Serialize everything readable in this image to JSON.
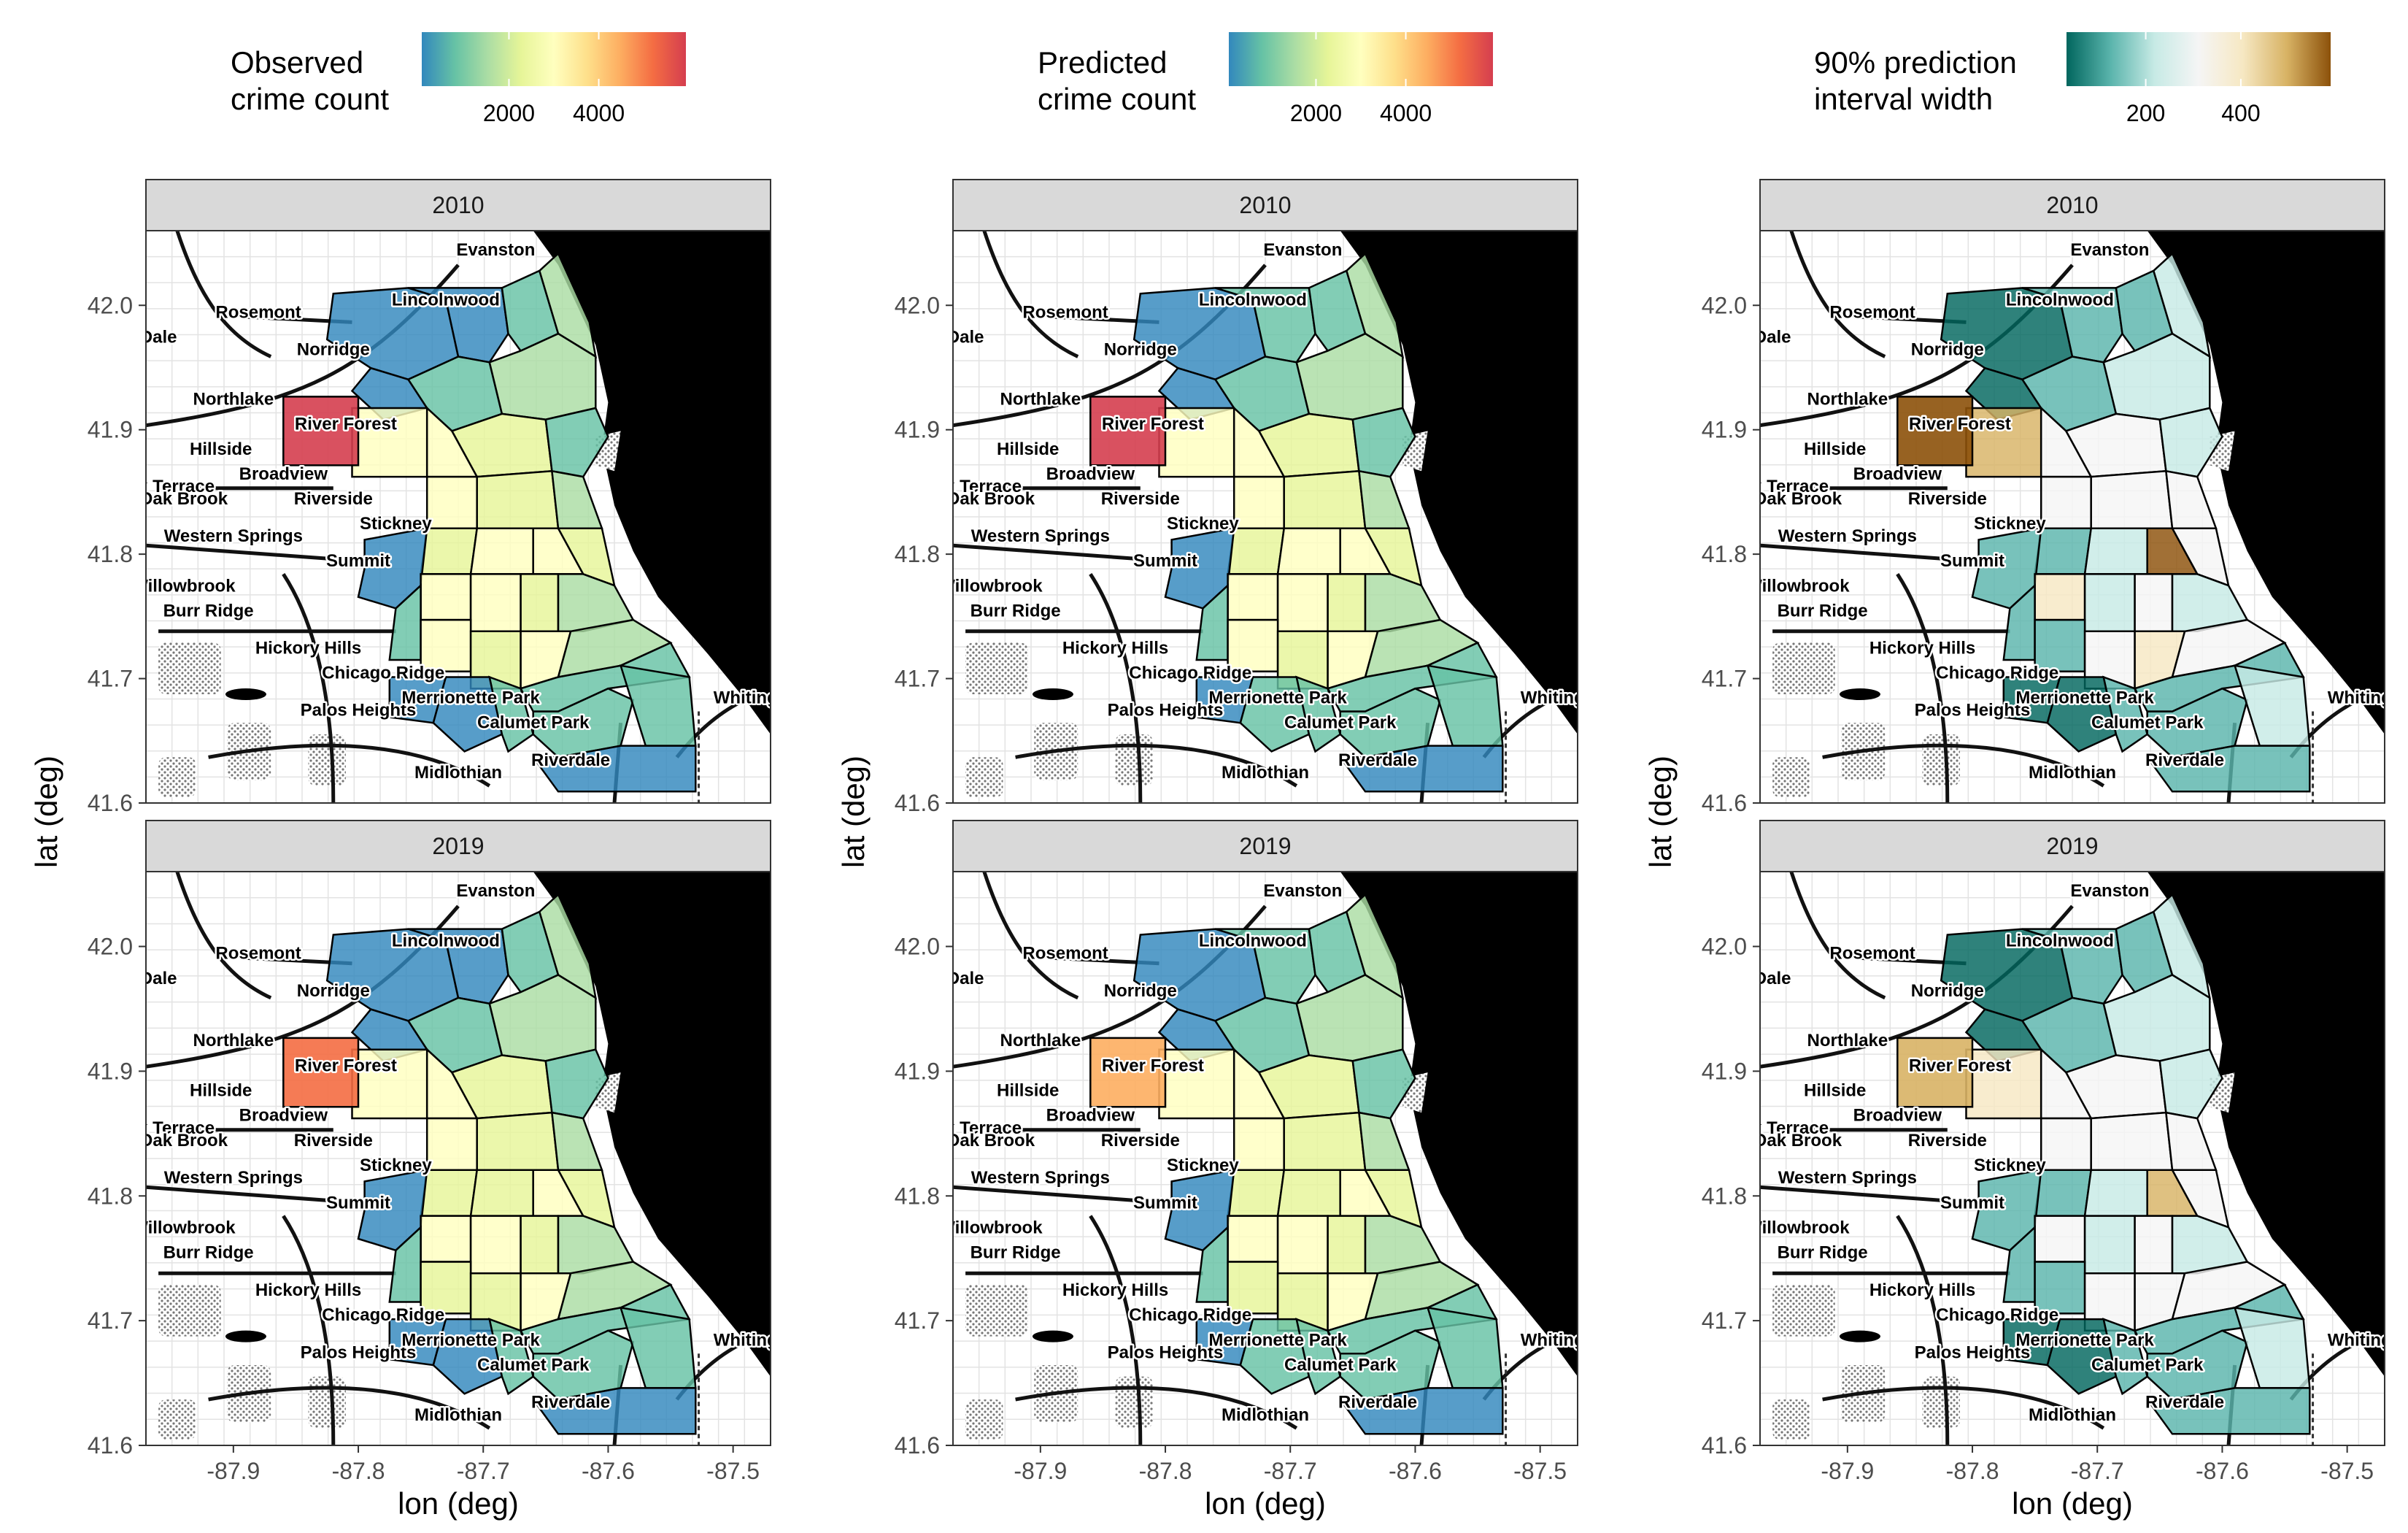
{
  "legends": [
    {
      "title": [
        "Observed",
        "crime count"
      ],
      "ticks": [
        "2000",
        "4000"
      ],
      "palette": "spectral"
    },
    {
      "title": [
        "Predicted",
        "crime count"
      ],
      "ticks": [
        "2000",
        "4000"
      ],
      "palette": "spectral"
    },
    {
      "title": [
        "90% prediction",
        "interval width"
      ],
      "ticks": [
        "200",
        "400"
      ],
      "palette": "brbg"
    }
  ],
  "years": [
    "2010",
    "2019"
  ],
  "axes": {
    "xlabel": "lon (deg)",
    "ylabel": "lat (deg)",
    "x_ticks": [
      "-87.9",
      "-87.8",
      "-87.7",
      "-87.6",
      "-87.5"
    ],
    "y_ticks": [
      "41.6",
      "41.7",
      "41.8",
      "41.9",
      "42.0"
    ],
    "xlim": [
      -87.97,
      -87.47
    ],
    "ylim": [
      41.6,
      42.06
    ]
  },
  "places": [
    {
      "name": "Evanston",
      "lon": -87.69,
      "lat": 42.04
    },
    {
      "name": "Lincolnwood",
      "lon": -87.73,
      "lat": 42.0
    },
    {
      "name": "Rosemont",
      "lon": -87.88,
      "lat": 41.99
    },
    {
      "name": "Dale",
      "lon": -87.96,
      "lat": 41.97
    },
    {
      "name": "Norridge",
      "lon": -87.82,
      "lat": 41.96
    },
    {
      "name": "Northlake",
      "lon": -87.9,
      "lat": 41.92
    },
    {
      "name": "River Forest",
      "lon": -87.81,
      "lat": 41.9
    },
    {
      "name": "Hillside",
      "lon": -87.91,
      "lat": 41.88
    },
    {
      "name": "Broadview",
      "lon": -87.86,
      "lat": 41.86
    },
    {
      "name": "ok Terrace",
      "lon": -87.95,
      "lat": 41.85
    },
    {
      "name": "Oak Brook",
      "lon": -87.94,
      "lat": 41.84
    },
    {
      "name": "Riverside",
      "lon": -87.82,
      "lat": 41.84
    },
    {
      "name": "Stickney",
      "lon": -87.77,
      "lat": 41.82
    },
    {
      "name": "Western Springs",
      "lon": -87.9,
      "lat": 41.81
    },
    {
      "name": "Summit",
      "lon": -87.8,
      "lat": 41.79
    },
    {
      "name": "Willowbrook",
      "lon": -87.94,
      "lat": 41.77
    },
    {
      "name": "Burr Ridge",
      "lon": -87.92,
      "lat": 41.75
    },
    {
      "name": "Hickory Hills",
      "lon": -87.84,
      "lat": 41.72
    },
    {
      "name": "Chicago Ridge",
      "lon": -87.78,
      "lat": 41.7
    },
    {
      "name": "Palos Heights",
      "lon": -87.8,
      "lat": 41.67
    },
    {
      "name": "Merrionette Park",
      "lon": -87.71,
      "lat": 41.68
    },
    {
      "name": "Calumet Park",
      "lon": -87.66,
      "lat": 41.66
    },
    {
      "name": "Riverdale",
      "lon": -87.63,
      "lat": 41.63
    },
    {
      "name": "Midlothian",
      "lon": -87.72,
      "lat": 41.62
    },
    {
      "name": "Whiting",
      "lon": -87.49,
      "lat": 41.68
    }
  ],
  "colors": {
    "lake": "#000000",
    "strip_fill": "#d9d9d9",
    "background": "#ffffff",
    "spectral": [
      "#3288bd",
      "#66c2a5",
      "#abdda4",
      "#e6f598",
      "#ffffbf",
      "#fee08b",
      "#fdae61",
      "#f46d43",
      "#d53e4f"
    ],
    "brbg": [
      "#01665e",
      "#5ab4ac",
      "#c7eae5",
      "#f5f5f5",
      "#f6e8c3",
      "#d8b365",
      "#8c510a"
    ]
  }
}
